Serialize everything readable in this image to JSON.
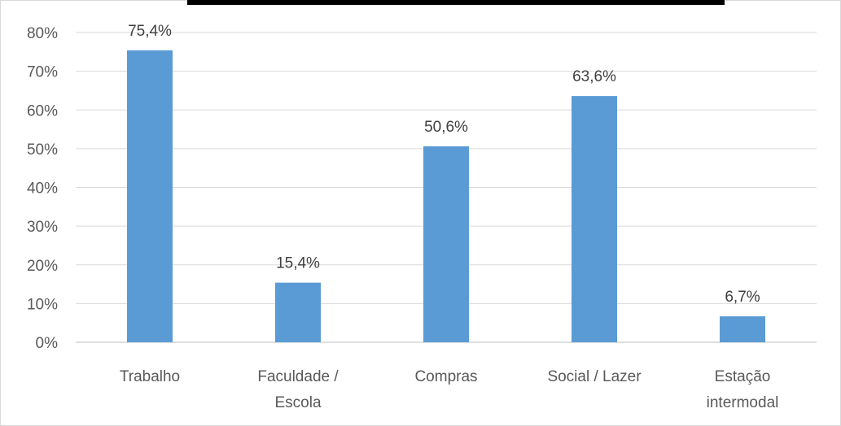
{
  "chart_data": {
    "type": "bar",
    "categories": [
      [
        "Trabalho"
      ],
      [
        "Faculdade /",
        "Escola"
      ],
      [
        "Compras"
      ],
      [
        "Social / Lazer"
      ],
      [
        "Estação",
        "intermodal"
      ]
    ],
    "values": [
      75.4,
      15.4,
      50.6,
      63.6,
      6.7
    ],
    "data_labels": [
      "75,4%",
      "15,4%",
      "50,6%",
      "63,6%",
      "6,7%"
    ],
    "y_ticks": [
      "0%",
      "10%",
      "20%",
      "30%",
      "40%",
      "50%",
      "60%",
      "70%",
      "80%"
    ],
    "ylim": [
      0,
      80
    ],
    "grid": true,
    "bar_color": "#5b9bd5"
  }
}
